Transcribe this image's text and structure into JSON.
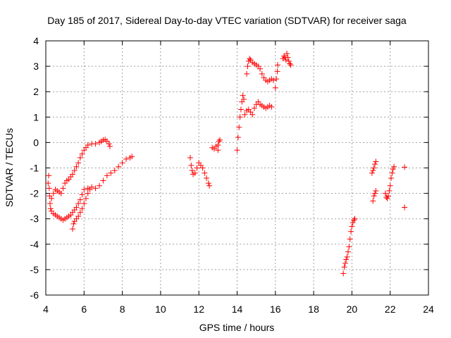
{
  "chart_data": {
    "type": "scatter",
    "title": "Day 185 of 2017, Sidereal Day-to-day VTEC variation (SDTVAR) for receiver saga",
    "xlabel": "GPS time / hours",
    "ylabel": "SDTVAR / TECUs",
    "xlim": [
      4,
      24
    ],
    "ylim": [
      -6,
      4
    ],
    "xticks": [
      "4",
      "6",
      "8",
      "10",
      "12",
      "14",
      "16",
      "18",
      "20",
      "22",
      "24"
    ],
    "yticks": [
      "-6",
      "-5",
      "-4",
      "-3",
      "-2",
      "-1",
      "0",
      "1",
      "2",
      "3",
      "4"
    ],
    "grid": true,
    "marker": "plus",
    "marker_color": "#ff0000",
    "series": [
      {
        "points": [
          [
            4.12,
            -1.6
          ],
          [
            4.15,
            -1.3
          ],
          [
            4.18,
            -1.8
          ],
          [
            4.2,
            -2.1
          ],
          [
            4.22,
            -2.4
          ],
          [
            4.25,
            -2.6
          ],
          [
            4.3,
            -2.7
          ],
          [
            4.4,
            -2.8
          ],
          [
            4.5,
            -2.85
          ],
          [
            4.6,
            -2.9
          ],
          [
            4.7,
            -2.95
          ],
          [
            4.8,
            -3.0
          ],
          [
            4.9,
            -3.05
          ],
          [
            5.0,
            -3.0
          ],
          [
            5.1,
            -2.95
          ],
          [
            5.2,
            -2.9
          ],
          [
            5.3,
            -2.85
          ],
          [
            5.4,
            -2.75
          ],
          [
            5.5,
            -2.65
          ],
          [
            5.6,
            -2.55
          ],
          [
            5.7,
            -2.4
          ],
          [
            5.8,
            -2.25
          ],
          [
            5.9,
            -2.05
          ],
          [
            6.0,
            -1.85
          ],
          [
            6.2,
            -1.8
          ],
          [
            6.4,
            -1.75
          ],
          [
            6.6,
            -1.8
          ],
          [
            6.8,
            -1.7
          ],
          [
            7.0,
            -1.5
          ],
          [
            7.2,
            -1.3
          ],
          [
            7.4,
            -1.2
          ],
          [
            7.6,
            -1.1
          ],
          [
            7.8,
            -0.95
          ],
          [
            8.0,
            -0.8
          ],
          [
            8.2,
            -0.65
          ],
          [
            8.4,
            -0.6
          ],
          [
            8.5,
            -0.55
          ]
        ]
      },
      {
        "points": [
          [
            4.3,
            -2.2
          ],
          [
            4.4,
            -2.0
          ],
          [
            4.5,
            -1.85
          ],
          [
            4.6,
            -1.9
          ],
          [
            4.7,
            -1.95
          ],
          [
            4.8,
            -2.0
          ],
          [
            4.9,
            -1.8
          ],
          [
            5.0,
            -1.6
          ],
          [
            5.1,
            -1.5
          ],
          [
            5.2,
            -1.45
          ],
          [
            5.3,
            -1.35
          ],
          [
            5.4,
            -1.25
          ],
          [
            5.5,
            -1.1
          ],
          [
            5.6,
            -0.95
          ],
          [
            5.7,
            -0.8
          ],
          [
            5.8,
            -0.6
          ],
          [
            5.9,
            -0.45
          ],
          [
            6.0,
            -0.3
          ],
          [
            6.1,
            -0.2
          ],
          [
            6.2,
            -0.1
          ],
          [
            6.4,
            -0.05
          ],
          [
            6.6,
            -0.05
          ],
          [
            6.8,
            0.0
          ],
          [
            6.9,
            0.05
          ],
          [
            7.0,
            0.1
          ],
          [
            7.1,
            0.12
          ],
          [
            7.2,
            0.05
          ],
          [
            7.3,
            -0.05
          ],
          [
            7.35,
            -0.15
          ]
        ]
      },
      {
        "points": [
          [
            5.4,
            -3.4
          ],
          [
            5.45,
            -3.2
          ],
          [
            5.5,
            -3.1
          ],
          [
            5.6,
            -3.0
          ],
          [
            5.7,
            -2.9
          ],
          [
            5.8,
            -2.75
          ],
          [
            5.9,
            -2.6
          ],
          [
            6.0,
            -2.4
          ],
          [
            6.1,
            -2.2
          ],
          [
            6.2,
            -2.0
          ],
          [
            6.3,
            -1.85
          ]
        ]
      },
      {
        "points": [
          [
            11.55,
            -0.6
          ],
          [
            11.6,
            -0.9
          ],
          [
            11.65,
            -1.1
          ],
          [
            11.7,
            -1.25
          ],
          [
            11.8,
            -1.2
          ],
          [
            11.9,
            -1.0
          ],
          [
            12.0,
            -0.8
          ],
          [
            12.1,
            -0.9
          ],
          [
            12.2,
            -1.0
          ],
          [
            12.3,
            -1.2
          ],
          [
            12.4,
            -1.4
          ],
          [
            12.5,
            -1.6
          ],
          [
            12.55,
            -1.7
          ]
        ]
      },
      {
        "points": [
          [
            12.7,
            -0.2
          ],
          [
            12.8,
            -0.25
          ],
          [
            12.9,
            -0.15
          ],
          [
            13.0,
            -0.1
          ],
          [
            13.05,
            0.05
          ],
          [
            13.1,
            0.1
          ],
          [
            13.0,
            -0.3
          ]
        ]
      },
      {
        "points": [
          [
            14.0,
            -0.3
          ],
          [
            14.05,
            0.2
          ],
          [
            14.1,
            0.6
          ],
          [
            14.15,
            1.0
          ],
          [
            14.2,
            1.3
          ],
          [
            14.25,
            1.6
          ],
          [
            14.3,
            1.85
          ],
          [
            14.35,
            1.7
          ],
          [
            14.4,
            1.1
          ],
          [
            14.5,
            1.25
          ],
          [
            14.6,
            1.3
          ],
          [
            14.7,
            1.2
          ],
          [
            14.8,
            1.1
          ],
          [
            14.9,
            1.35
          ],
          [
            15.0,
            1.5
          ],
          [
            15.1,
            1.6
          ],
          [
            15.2,
            1.5
          ],
          [
            15.3,
            1.45
          ],
          [
            15.4,
            1.4
          ],
          [
            15.5,
            1.35
          ],
          [
            15.6,
            1.4
          ],
          [
            15.7,
            1.45
          ],
          [
            15.8,
            1.4
          ]
        ]
      },
      {
        "points": [
          [
            14.5,
            2.7
          ],
          [
            14.55,
            3.0
          ],
          [
            14.6,
            3.2
          ],
          [
            14.65,
            3.3
          ],
          [
            14.7,
            3.25
          ],
          [
            14.8,
            3.15
          ],
          [
            14.9,
            3.1
          ],
          [
            15.0,
            3.05
          ],
          [
            15.1,
            3.0
          ],
          [
            15.2,
            2.9
          ],
          [
            15.3,
            2.7
          ],
          [
            15.4,
            2.55
          ],
          [
            15.5,
            2.45
          ],
          [
            15.6,
            2.4
          ],
          [
            15.7,
            2.45
          ],
          [
            15.8,
            2.5
          ],
          [
            15.9,
            2.45
          ]
        ]
      },
      {
        "points": [
          [
            16.0,
            2.15
          ],
          [
            16.05,
            2.5
          ],
          [
            16.1,
            2.8
          ],
          [
            16.12,
            3.05
          ]
        ]
      },
      {
        "points": [
          [
            16.4,
            3.3
          ],
          [
            16.45,
            3.4
          ],
          [
            16.5,
            3.35
          ],
          [
            16.55,
            3.25
          ],
          [
            16.6,
            3.5
          ],
          [
            16.65,
            3.35
          ],
          [
            16.7,
            3.2
          ],
          [
            16.75,
            3.1
          ],
          [
            16.8,
            3.05
          ]
        ]
      },
      {
        "points": [
          [
            19.55,
            -5.15
          ],
          [
            19.6,
            -4.9
          ],
          [
            19.65,
            -4.75
          ],
          [
            19.7,
            -4.6
          ],
          [
            19.75,
            -4.5
          ],
          [
            19.8,
            -4.3
          ],
          [
            19.85,
            -4.1
          ],
          [
            19.9,
            -3.8
          ],
          [
            19.95,
            -3.5
          ],
          [
            20.0,
            -3.3
          ],
          [
            20.05,
            -3.15
          ],
          [
            20.1,
            -3.05
          ],
          [
            20.15,
            -3.0
          ]
        ]
      },
      {
        "points": [
          [
            21.05,
            -1.2
          ],
          [
            21.1,
            -1.1
          ],
          [
            21.15,
            -1.0
          ],
          [
            21.2,
            -0.85
          ],
          [
            21.25,
            -0.75
          ],
          [
            21.1,
            -2.3
          ],
          [
            21.15,
            -2.1
          ],
          [
            21.2,
            -2.0
          ],
          [
            21.25,
            -1.9
          ]
        ]
      },
      {
        "points": [
          [
            21.75,
            -2.0
          ],
          [
            21.8,
            -2.15
          ],
          [
            21.85,
            -2.2
          ],
          [
            21.9,
            -2.1
          ],
          [
            21.95,
            -1.9
          ],
          [
            22.0,
            -1.7
          ],
          [
            22.05,
            -1.4
          ],
          [
            22.1,
            -1.2
          ],
          [
            22.15,
            -1.05
          ],
          [
            22.2,
            -0.95
          ]
        ]
      },
      {
        "points": [
          [
            22.75,
            -0.97
          ],
          [
            22.75,
            -2.55
          ]
        ]
      }
    ]
  }
}
